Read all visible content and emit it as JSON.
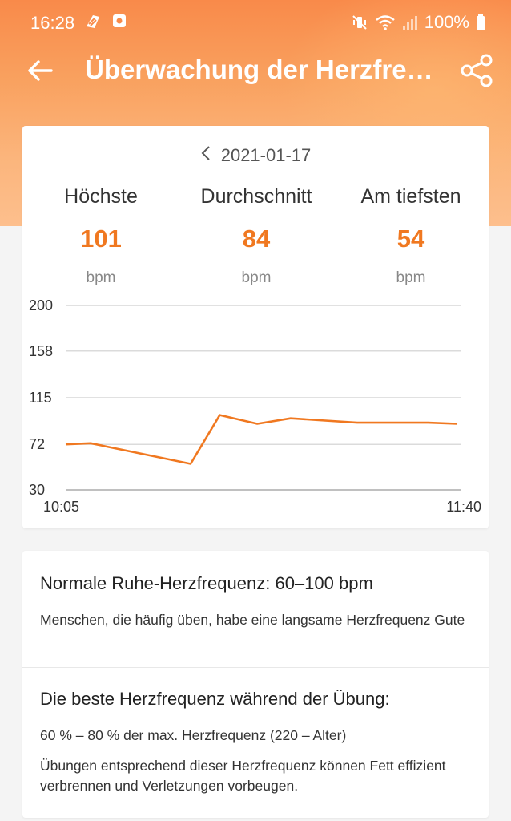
{
  "status_bar": {
    "time": "16:28",
    "battery": "100%",
    "icons": [
      "app-notification-icon",
      "image-notification-icon",
      "mute-vibrate-icon",
      "wifi-icon",
      "signal-icon",
      "battery-icon"
    ]
  },
  "app_bar": {
    "title": "Überwachung der Herzfrequenz",
    "icons": [
      "arrow-back-icon",
      "share-icon"
    ]
  },
  "date_nav": {
    "date": "2021-01-17",
    "prev_icon": "chevron-left-icon"
  },
  "stats": [
    {
      "label": "Höchste",
      "value": "101",
      "unit": "bpm"
    },
    {
      "label": "Durchschnitt",
      "value": "84",
      "unit": "bpm"
    },
    {
      "label": "Am tiefsten",
      "value": "54",
      "unit": "bpm"
    }
  ],
  "chart_data": {
    "type": "line",
    "y_ticks": [
      "200",
      "158",
      "115",
      "72",
      "30"
    ],
    "ylim": [
      30,
      200
    ],
    "x_labels": [
      "10:05",
      "11:40"
    ],
    "xlim": [
      "10:05",
      "11:40"
    ],
    "grid": true,
    "series": [
      {
        "color": "#f07820",
        "x": [
          "10:05",
          "10:11",
          "10:35",
          "10:42",
          "10:51",
          "10:59",
          "11:15",
          "11:32",
          "11:39"
        ],
        "values": [
          72,
          73,
          54,
          99,
          91,
          96,
          92,
          92,
          91
        ]
      }
    ]
  },
  "info": {
    "rest_title": "Normale Ruhe-Herzfrequenz: 60–100 bpm",
    "rest_text": "Menschen, die häufig üben, habe eine langsame Herzfrequenz Gute",
    "exercise_title": "Die beste Herzfrequenz während der Übung:",
    "exercise_range": "60 % – 80 % der max. Herzfrequenz (220 – Alter)",
    "exercise_text": "Übungen entsprechend dieser Herzfrequenz können Fett effizient verbrennen und Verletzungen vorbeugen."
  },
  "colors": {
    "accent": "#f07820",
    "header_top": "#f98a4a",
    "header_bottom": "#fdbf8d"
  }
}
